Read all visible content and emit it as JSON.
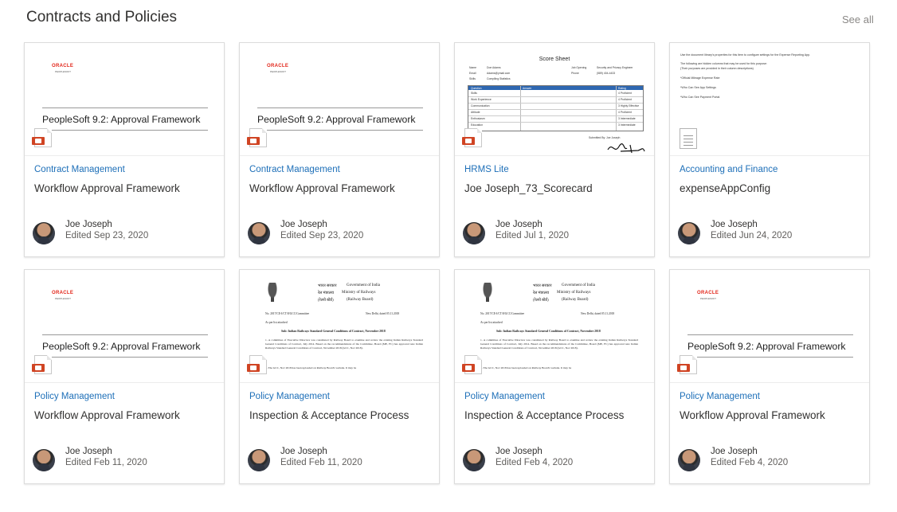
{
  "header": {
    "title": "Contracts and Policies",
    "see_all": "See all"
  },
  "cards": [
    {
      "thumb": "oracle",
      "site": "Contract Management",
      "title": "Workflow Approval Framework",
      "author": "Joe Joseph",
      "edited": "Edited Sep 23, 2020",
      "file_icon": "powerpoint-file-icon"
    },
    {
      "thumb": "oracle",
      "site": "Contract Management",
      "title": "Workflow Approval Framework",
      "author": "Joe Joseph",
      "edited": "Edited Sep 23, 2020",
      "file_icon": "powerpoint-file-icon"
    },
    {
      "thumb": "scoresheet",
      "site": "HRMS Lite",
      "title": "Joe Joseph_73_Scorecard",
      "author": "Joe Joseph",
      "edited": "Edited Jul 1, 2020",
      "file_icon": "powerpoint-file-icon"
    },
    {
      "thumb": "expense",
      "site": "Accounting and Finance",
      "title": "expenseAppConfig",
      "author": "Joe Joseph",
      "edited": "Edited Jun 24, 2020",
      "file_icon": "generic-file-icon"
    },
    {
      "thumb": "oracle",
      "site": "Policy Management",
      "title": "Workflow Approval Framework",
      "author": "Joe Joseph",
      "edited": "Edited Feb 11, 2020",
      "file_icon": "powerpoint-file-icon"
    },
    {
      "thumb": "railway",
      "site": "Policy Management",
      "title": "Inspection & Acceptance Process",
      "author": "Joe Joseph",
      "edited": "Edited Feb 11, 2020",
      "file_icon": "powerpoint-file-icon"
    },
    {
      "thumb": "railway",
      "site": "Policy Management",
      "title": "Inspection & Acceptance Process",
      "author": "Joe Joseph",
      "edited": "Edited Feb 4, 2020",
      "file_icon": "powerpoint-file-icon"
    },
    {
      "thumb": "oracle",
      "site": "Policy Management",
      "title": "Workflow Approval Framework",
      "author": "Joe Joseph",
      "edited": "Edited Feb 4, 2020",
      "file_icon": "powerpoint-file-icon"
    }
  ],
  "thumbs": {
    "oracle": {
      "logo": "ORACLE",
      "sub": "PEOPLESOFT",
      "heading": "PeopleSoft 9.2: Approval Framework"
    },
    "scoresheet": {
      "heading": "Score Sheet",
      "info_left": [
        "Name",
        "Email",
        "Skills"
      ],
      "info_left_vals": [
        "Doe Adams",
        "Adams@ymail.com",
        "Compiling Statistics"
      ],
      "info_right": [
        "Job Opening",
        "Phone"
      ],
      "info_right_vals": [
        "Security and Privacy Engineer",
        "(589) 404-4433"
      ],
      "table_head": [
        "Question",
        "Answer",
        "Rating"
      ],
      "row_labels": [
        "Skills",
        "Work Experience",
        "Communication",
        "Attitude",
        "Enthusiasm",
        "Education"
      ],
      "ratings": [
        "4 Proficient",
        "4 Proficient",
        "3 Highly Effective",
        "4 Proficient",
        "3 Intermediate",
        "3 Intermediate"
      ],
      "submitted": "Submitted By: Joe Joseph"
    },
    "expense": {
      "lines": [
        "Use the document library's properties for this item to configure settings for the Expense Reporting App.",
        "The following are hidden columns that may be used for this purpose:",
        "(Their purposes are provided in their column descriptions)",
        "*Official Mileage Expense Rate",
        "*Who Can See App Settings",
        "*Who Can See Payment Portal"
      ]
    },
    "railway": {
      "hindi_gov": "भारत सरकार",
      "gov": "Government of India",
      "hindi_min": "रेल मंत्रालय",
      "ministry": "Ministry of Railways",
      "hindi_board": "(रेलवे बोर्ड)",
      "board": "(Railway Board)",
      "ref": "No. 2017/CE-I/CT/8/GCC/Committee",
      "date": "New Delhi, dated 05.11.2018",
      "as_per": "As per list attached",
      "subject": "Sub: Indian Railways Standard General Conditions of Contract, November 2018",
      "p1": "1. A committee of Executive Directors was constituted by Railway Board to examine and review the existing Indian Railways Standard General Conditions of Contract, July 2014. Based on the recommendations of the Committee, Board (ME, FC) has approved new Indian Railways Standard General Conditions of Contract, November 2018 (GCC, Nov 2018).",
      "p2": "2. The GCC, Nov 2018 has been uploaded on Railway Board's website. It may be"
    }
  }
}
